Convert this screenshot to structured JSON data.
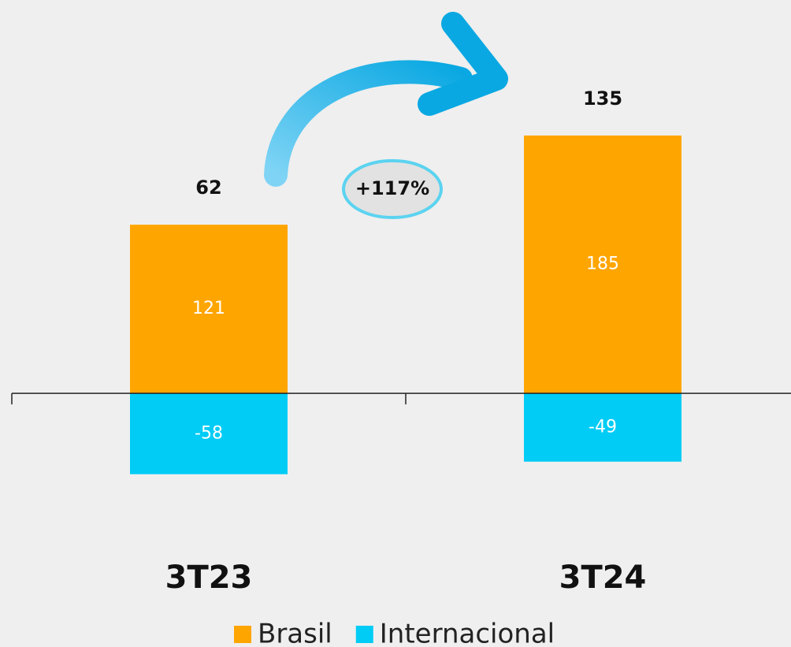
{
  "chart_data": {
    "type": "stacked-bar",
    "categories": [
      "3T23",
      "3T24"
    ],
    "series": [
      {
        "name": "Brasil",
        "color": "#ffa500",
        "values": [
          121,
          185
        ]
      },
      {
        "name": "Internacional",
        "color": "#00ccf5",
        "values": [
          -58,
          -49
        ]
      }
    ],
    "totals": [
      62,
      135
    ],
    "annotation": "+117%",
    "ylim": [
      -100,
      250
    ]
  }
}
